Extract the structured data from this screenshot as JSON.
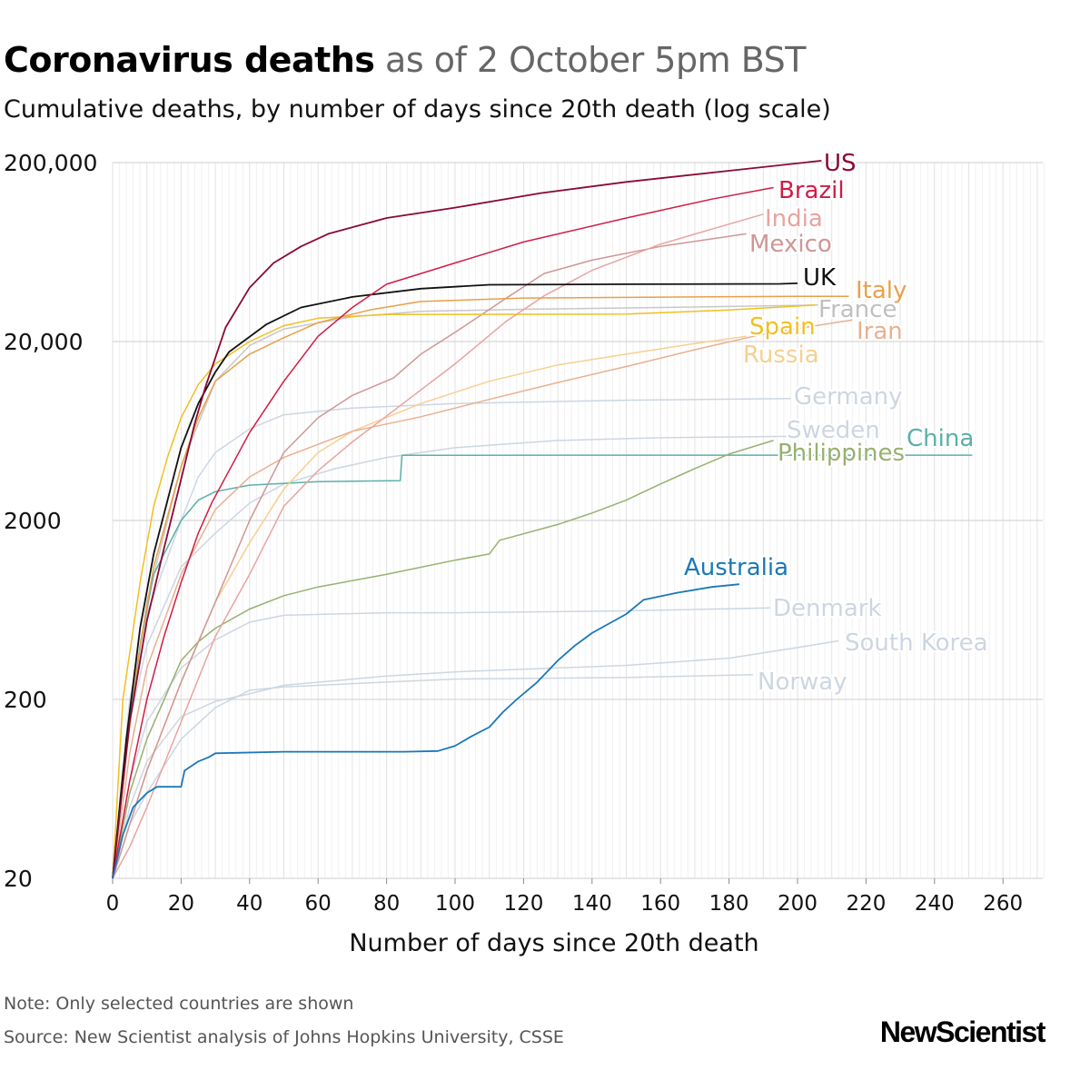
{
  "chart_data": {
    "type": "line",
    "title": "Coronavirus deaths",
    "title_suffix": "as of 2 October 5pm BST",
    "subtitle": "Cumulative deaths, by number of days since 20th death (log scale)",
    "xlabel": "Number of days since 20th death",
    "ylabel": "",
    "yscale": "log",
    "xlim": [
      0,
      272
    ],
    "ylim": [
      20,
      200000
    ],
    "xticks": [
      "0",
      "20",
      "40",
      "60",
      "80",
      "100",
      "120",
      "140",
      "160",
      "180",
      "200",
      "220",
      "240",
      "260"
    ],
    "yticks": [
      "20",
      "200",
      "2000",
      "20,000",
      "200,000"
    ],
    "grid": true,
    "series": [
      {
        "name": "Norway",
        "color": "#cdd6e0",
        "points": [
          [
            0,
            20
          ],
          [
            5,
            40
          ],
          [
            10,
            60
          ],
          [
            20,
            120
          ],
          [
            30,
            180
          ],
          [
            40,
            225
          ],
          [
            50,
            235
          ],
          [
            80,
            250
          ],
          [
            100,
            260
          ],
          [
            150,
            265
          ],
          [
            187,
            275
          ]
        ]
      },
      {
        "name": "South Korea",
        "color": "#cdd6e0",
        "points": [
          [
            0,
            20
          ],
          [
            5,
            50
          ],
          [
            10,
            90
          ],
          [
            20,
            160
          ],
          [
            30,
            195
          ],
          [
            40,
            215
          ],
          [
            50,
            240
          ],
          [
            80,
            270
          ],
          [
            100,
            285
          ],
          [
            150,
            310
          ],
          [
            180,
            340
          ],
          [
            200,
            390
          ],
          [
            212,
            425
          ]
        ]
      },
      {
        "name": "Denmark",
        "color": "#cdd6e0",
        "points": [
          [
            0,
            20
          ],
          [
            5,
            70
          ],
          [
            10,
            150
          ],
          [
            20,
            300
          ],
          [
            30,
            430
          ],
          [
            40,
            540
          ],
          [
            50,
            590
          ],
          [
            80,
            610
          ],
          [
            100,
            610
          ],
          [
            150,
            625
          ],
          [
            192,
            650
          ]
        ]
      },
      {
        "name": "Sweden",
        "color": "#cdd6e0",
        "points": [
          [
            0,
            20
          ],
          [
            5,
            150
          ],
          [
            10,
            400
          ],
          [
            20,
            1100
          ],
          [
            30,
            1700
          ],
          [
            40,
            2500
          ],
          [
            50,
            3200
          ],
          [
            65,
            3900
          ],
          [
            80,
            4500
          ],
          [
            100,
            5100
          ],
          [
            130,
            5600
          ],
          [
            160,
            5800
          ],
          [
            197,
            5900
          ]
        ]
      },
      {
        "name": "Germany",
        "color": "#cdd6e0",
        "points": [
          [
            0,
            20
          ],
          [
            5,
            200
          ],
          [
            10,
            600
          ],
          [
            20,
            2000
          ],
          [
            25,
            3500
          ],
          [
            30,
            4800
          ],
          [
            40,
            6500
          ],
          [
            50,
            7800
          ],
          [
            70,
            8500
          ],
          [
            100,
            9000
          ],
          [
            150,
            9400
          ],
          [
            198,
            9600
          ]
        ]
      },
      {
        "name": "France",
        "color": "#c8c8c8",
        "points": [
          [
            0,
            20
          ],
          [
            5,
            150
          ],
          [
            10,
            700
          ],
          [
            20,
            4000
          ],
          [
            30,
            12000
          ],
          [
            40,
            19000
          ],
          [
            50,
            23500
          ],
          [
            70,
            27500
          ],
          [
            90,
            29500
          ],
          [
            120,
            30300
          ],
          [
            160,
            31000
          ],
          [
            206,
            32000
          ]
        ]
      },
      {
        "name": "China",
        "color": "#5ab0a8",
        "points": [
          [
            0,
            20
          ],
          [
            3,
            80
          ],
          [
            8,
            400
          ],
          [
            12,
            1000
          ],
          [
            20,
            2000
          ],
          [
            25,
            2600
          ],
          [
            30,
            2900
          ],
          [
            40,
            3150
          ],
          [
            60,
            3300
          ],
          [
            84,
            3340
          ],
          [
            84.5,
            4630
          ],
          [
            251,
            4634
          ]
        ]
      },
      {
        "name": "Philippines",
        "color": "#98b070",
        "points": [
          [
            0,
            20
          ],
          [
            5,
            60
          ],
          [
            10,
            120
          ],
          [
            20,
            330
          ],
          [
            25,
            420
          ],
          [
            30,
            500
          ],
          [
            40,
            640
          ],
          [
            50,
            760
          ],
          [
            60,
            850
          ],
          [
            80,
            1000
          ],
          [
            100,
            1200
          ],
          [
            110,
            1300
          ],
          [
            113,
            1550
          ],
          [
            130,
            1900
          ],
          [
            140,
            2200
          ],
          [
            150,
            2600
          ],
          [
            160,
            3200
          ],
          [
            170,
            3900
          ],
          [
            180,
            4700
          ],
          [
            193,
            5600
          ]
        ]
      },
      {
        "name": "Russia",
        "color": "#f5d090",
        "points": [
          [
            0,
            20
          ],
          [
            5,
            40
          ],
          [
            10,
            80
          ],
          [
            20,
            250
          ],
          [
            30,
            700
          ],
          [
            40,
            1500
          ],
          [
            50,
            3000
          ],
          [
            60,
            4800
          ],
          [
            70,
            6300
          ],
          [
            90,
            9000
          ],
          [
            110,
            12000
          ],
          [
            130,
            14800
          ],
          [
            150,
            17000
          ],
          [
            170,
            19500
          ],
          [
            185,
            21400
          ]
        ]
      },
      {
        "name": "Iran",
        "color": "#e8b090",
        "points": [
          [
            0,
            20
          ],
          [
            5,
            100
          ],
          [
            10,
            300
          ],
          [
            20,
            1000
          ],
          [
            30,
            2300
          ],
          [
            40,
            3500
          ],
          [
            50,
            4500
          ],
          [
            70,
            6300
          ],
          [
            90,
            7600
          ],
          [
            110,
            9500
          ],
          [
            130,
            11800
          ],
          [
            150,
            14500
          ],
          [
            170,
            18000
          ],
          [
            190,
            22000
          ],
          [
            216,
            26400
          ]
        ]
      },
      {
        "name": "Mexico",
        "color": "#cf9696",
        "points": [
          [
            0,
            20
          ],
          [
            5,
            40
          ],
          [
            10,
            80
          ],
          [
            20,
            250
          ],
          [
            30,
            700
          ],
          [
            40,
            2000
          ],
          [
            50,
            4800
          ],
          [
            60,
            7500
          ],
          [
            70,
            10000
          ],
          [
            82,
            12500
          ],
          [
            90,
            17000
          ],
          [
            100,
            22500
          ],
          [
            115,
            35000
          ],
          [
            126,
            48000
          ],
          [
            140,
            57000
          ],
          [
            160,
            68000
          ],
          [
            185,
            80000
          ]
        ]
      },
      {
        "name": "India",
        "color": "#e8a3a0",
        "points": [
          [
            0,
            20
          ],
          [
            5,
            30
          ],
          [
            10,
            50
          ],
          [
            20,
            150
          ],
          [
            30,
            450
          ],
          [
            40,
            1000
          ],
          [
            50,
            2400
          ],
          [
            60,
            3800
          ],
          [
            70,
            5500
          ],
          [
            82,
            8200
          ],
          [
            100,
            15000
          ],
          [
            115,
            26000
          ],
          [
            126,
            36000
          ],
          [
            140,
            50000
          ],
          [
            160,
            70000
          ],
          [
            175,
            85000
          ],
          [
            190,
            103000
          ]
        ]
      },
      {
        "name": "Spain",
        "color": "#f0c020",
        "points": [
          [
            0,
            20
          ],
          [
            3,
            200
          ],
          [
            8,
            900
          ],
          [
            12,
            2400
          ],
          [
            16,
            4500
          ],
          [
            20,
            7500
          ],
          [
            25,
            11500
          ],
          [
            30,
            15000
          ],
          [
            40,
            20000
          ],
          [
            50,
            24500
          ],
          [
            60,
            27000
          ],
          [
            80,
            28300
          ],
          [
            150,
            28500
          ],
          [
            180,
            30000
          ],
          [
            205,
            32000
          ]
        ]
      },
      {
        "name": "Italy",
        "color": "#e8a04a",
        "points": [
          [
            0,
            20
          ],
          [
            4,
            100
          ],
          [
            8,
            400
          ],
          [
            12,
            1100
          ],
          [
            20,
            4000
          ],
          [
            25,
            7500
          ],
          [
            30,
            12000
          ],
          [
            40,
            17000
          ],
          [
            50,
            21000
          ],
          [
            60,
            25500
          ],
          [
            75,
            30000
          ],
          [
            90,
            33500
          ],
          [
            120,
            35000
          ],
          [
            200,
            35800
          ],
          [
            215,
            35800
          ]
        ]
      },
      {
        "name": "UK",
        "color": "#111111",
        "points": [
          [
            0,
            20
          ],
          [
            4,
            120
          ],
          [
            8,
            500
          ],
          [
            12,
            1300
          ],
          [
            20,
            5100
          ],
          [
            25,
            9000
          ],
          [
            30,
            13500
          ],
          [
            34,
            17500
          ],
          [
            45,
            25000
          ],
          [
            55,
            31000
          ],
          [
            70,
            35500
          ],
          [
            90,
            39500
          ],
          [
            110,
            41500
          ],
          [
            150,
            41800
          ],
          [
            195,
            42000
          ],
          [
            200,
            42300
          ]
        ]
      },
      {
        "name": "Brazil",
        "color": "#d01c45",
        "points": [
          [
            0,
            20
          ],
          [
            5,
            70
          ],
          [
            10,
            200
          ],
          [
            15,
            450
          ],
          [
            20,
            900
          ],
          [
            25,
            1700
          ],
          [
            29,
            2520
          ],
          [
            40,
            6200
          ],
          [
            50,
            12000
          ],
          [
            60,
            21400
          ],
          [
            70,
            31000
          ],
          [
            80,
            41800
          ],
          [
            100,
            55000
          ],
          [
            120,
            72000
          ],
          [
            150,
            98000
          ],
          [
            175,
            125000
          ],
          [
            193,
            145000
          ]
        ]
      },
      {
        "name": "US",
        "color": "#8b0a32",
        "points": [
          [
            0,
            20
          ],
          [
            5,
            150
          ],
          [
            10,
            550
          ],
          [
            15,
            1400
          ],
          [
            20,
            3400
          ],
          [
            24,
            7000
          ],
          [
            27,
            11000
          ],
          [
            33,
            24000
          ],
          [
            40,
            40000
          ],
          [
            47,
            55000
          ],
          [
            55,
            68000
          ],
          [
            63,
            80000
          ],
          [
            80,
            98000
          ],
          [
            100,
            112000
          ],
          [
            125,
            135000
          ],
          [
            150,
            156000
          ],
          [
            180,
            180000
          ],
          [
            207,
            205000
          ]
        ]
      },
      {
        "name": "Australia",
        "color": "#1a78b8",
        "points": [
          [
            0,
            20
          ],
          [
            3,
            35
          ],
          [
            6,
            50
          ],
          [
            10,
            60
          ],
          [
            13,
            65
          ],
          [
            20,
            65
          ],
          [
            21,
            80
          ],
          [
            25,
            90
          ],
          [
            28,
            95
          ],
          [
            30,
            100
          ],
          [
            50,
            102
          ],
          [
            85,
            102
          ],
          [
            95,
            103
          ],
          [
            100,
            110
          ],
          [
            105,
            125
          ],
          [
            110,
            140
          ],
          [
            114,
            170
          ],
          [
            118,
            200
          ],
          [
            124,
            250
          ],
          [
            130,
            330
          ],
          [
            135,
            400
          ],
          [
            140,
            470
          ],
          [
            150,
            600
          ],
          [
            155,
            720
          ],
          [
            165,
            790
          ],
          [
            175,
            850
          ],
          [
            183,
            880
          ]
        ]
      }
    ]
  },
  "notes": {
    "note": "Note: Only selected countries are shown",
    "source": "Source: New Scientist analysis of Johns Hopkins University, CSSE"
  },
  "brand": {
    "logo": "NewScientist"
  }
}
